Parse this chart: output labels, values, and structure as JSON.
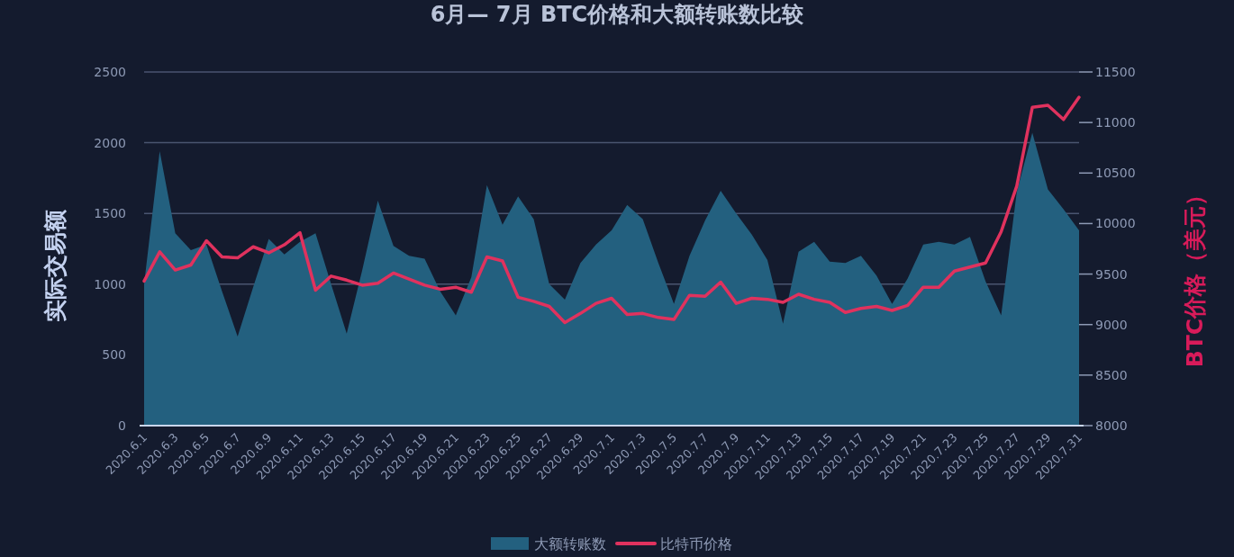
{
  "chart_data": {
    "type": "line",
    "title": "6月— 7月 BTC价格和大额转账数比较",
    "ylabel": "实际交易额",
    "y2label": "BTC价格（美元）",
    "categories": [
      "2020.6.1",
      null,
      "2020.6.3",
      null,
      "2020.6.5",
      null,
      "2020.6.7",
      null,
      "2020.6.9",
      null,
      "2020.6.11",
      null,
      "2020.6.13",
      null,
      "2020.6.15",
      null,
      "2020.6.17",
      null,
      "2020.6.19",
      null,
      "2020.6.21",
      null,
      "2020.6.23",
      null,
      "2020.6.25",
      null,
      "2020.6.27",
      null,
      "2020.6.29",
      null,
      "2020.7.1",
      null,
      "2020.7.3",
      null,
      "2020.7.5",
      null,
      "2020.7.7",
      null,
      "2020.7.9",
      null,
      "2020.7.11",
      null,
      "2020.7.13",
      null,
      "2020.7.15",
      null,
      "2020.7.17",
      null,
      "2020.7.19",
      null,
      "2020.7.21",
      null,
      "2020.7.23",
      null,
      "2020.7.25",
      null,
      "2020.7.27",
      null,
      "2020.7.29",
      null,
      "2020.7.31"
    ],
    "series": [
      {
        "name": "大额转账数",
        "type": "area",
        "color": "#23607f",
        "values": [
          1000,
          1940,
          1360,
          1240,
          1280,
          950,
          630,
          980,
          1320,
          1210,
          1300,
          1360,
          1000,
          650,
          1100,
          1590,
          1270,
          1200,
          1180,
          950,
          780,
          1050,
          1700,
          1420,
          1620,
          1460,
          1000,
          890,
          1150,
          1280,
          1380,
          1560,
          1460,
          1150,
          860,
          1200,
          1450,
          1660,
          1500,
          1350,
          1170,
          720,
          1230,
          1300,
          1160,
          1150,
          1200,
          1060,
          860,
          1040,
          1280,
          1300,
          1280,
          1335,
          1020,
          780,
          1650,
          2070,
          1670,
          1530,
          1380
        ]
      },
      {
        "name": "比特币价格",
        "axis": "y2",
        "color": "#e0325e",
        "values": [
          9430,
          9720,
          9540,
          9590,
          9830,
          9670,
          9660,
          9770,
          9710,
          9790,
          9910,
          9340,
          9480,
          9440,
          9390,
          9410,
          9510,
          9450,
          9390,
          9350,
          9370,
          9320,
          9670,
          9630,
          9270,
          9230,
          9180,
          9020,
          9110,
          9210,
          9260,
          9100,
          9110,
          9070,
          9050,
          9290,
          9280,
          9420,
          9210,
          9260,
          9250,
          9220,
          9300,
          9250,
          9220,
          9120,
          9160,
          9180,
          9140,
          9190,
          9370,
          9370,
          9530,
          9570,
          9610,
          9920,
          10370,
          11150,
          11170,
          11030,
          11250
        ]
      }
    ],
    "ylim": [
      0,
      2500
    ],
    "yticks": [
      0,
      500,
      1000,
      1500,
      2000,
      2500
    ],
    "y2lim": [
      8000,
      11500
    ],
    "y2ticks": [
      8000,
      8500,
      9000,
      9500,
      10000,
      10500,
      11000,
      11500
    ],
    "grid": "y",
    "legend": "bottom",
    "marker": "none",
    "line_style": "solid"
  }
}
